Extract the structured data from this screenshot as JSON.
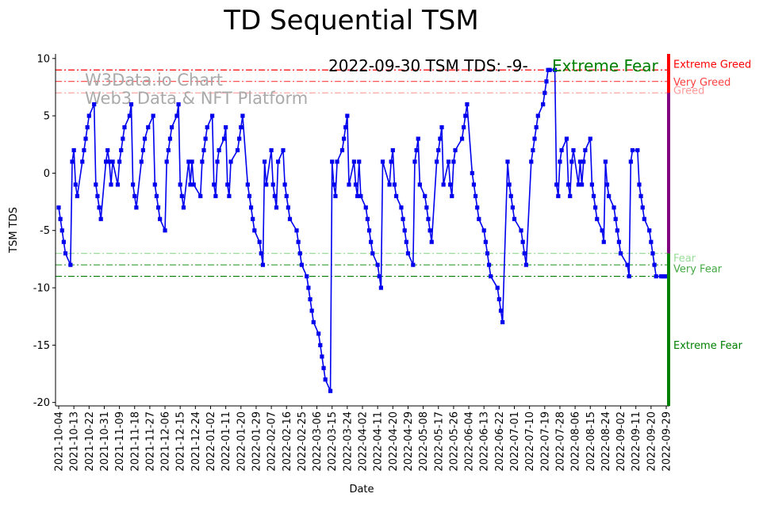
{
  "chart_data": {
    "type": "line",
    "title": "TD Sequential TSM",
    "xlabel": "Date",
    "ylabel": "TSM TDS",
    "ylim": [
      -20.3,
      10.4
    ],
    "yticks": [
      10,
      5,
      0,
      -5,
      -10,
      -15,
      -20
    ],
    "x_start": "2021-10-04",
    "x_end": "2022-09-29",
    "x_tick_labels": [
      "2021-10-04",
      "2021-10-13",
      "2021-10-22",
      "2021-10-31",
      "2021-11-09",
      "2021-11-18",
      "2021-11-27",
      "2021-12-06",
      "2021-12-15",
      "2021-12-24",
      "2022-01-02",
      "2022-01-11",
      "2022-01-20",
      "2022-01-29",
      "2022-02-07",
      "2022-02-16",
      "2022-02-25",
      "2022-03-06",
      "2022-03-15",
      "2022-03-24",
      "2022-04-02",
      "2022-04-11",
      "2022-04-20",
      "2022-04-29",
      "2022-05-08",
      "2022-05-17",
      "2022-05-26",
      "2022-06-04",
      "2022-06-13",
      "2022-06-22",
      "2022-07-01",
      "2022-07-10",
      "2022-07-19",
      "2022-07-28",
      "2022-08-06",
      "2022-08-15",
      "2022-08-24",
      "2022-09-02",
      "2022-09-11",
      "2022-09-20",
      "2022-09-29"
    ],
    "annotation_date": "2022-09-30 TSM TDS: -9-",
    "annotation_label": "Extreme Fear",
    "watermark_line1": "W3Data.io Chart",
    "watermark_line2": "Web3 Data & NFT Platform",
    "levels": [
      {
        "value": 9,
        "label": "Extreme Greed",
        "color": "#ff0000",
        "style": "dashdot"
      },
      {
        "value": 8,
        "label": "Very Greed",
        "color": "#ff4040",
        "style": "dashdot"
      },
      {
        "value": 7,
        "label": "Greed",
        "color": "#ff9999",
        "style": "dashdot"
      },
      {
        "value": -7,
        "label": "Fear",
        "color": "#99dd99",
        "style": "dashdot"
      },
      {
        "value": -8,
        "label": "Very Fear",
        "color": "#44aa44",
        "style": "dashdot"
      },
      {
        "value": -9,
        "label": "Extreme Fear",
        "color": "#008000",
        "style": "dashdot"
      }
    ],
    "series": [
      {
        "color": "#0000ee",
        "points": [
          [
            "2021-10-04",
            -3
          ],
          [
            "2021-10-05",
            -4
          ],
          [
            "2021-10-06",
            -5
          ],
          [
            "2021-10-07",
            -6
          ],
          [
            "2021-10-08",
            -7
          ],
          [
            "2021-10-11",
            -8
          ],
          [
            "2021-10-12",
            1
          ],
          [
            "2021-10-13",
            2
          ],
          [
            "2021-10-14",
            -1
          ],
          [
            "2021-10-15",
            -2
          ],
          [
            "2021-10-18",
            1
          ],
          [
            "2021-10-19",
            2
          ],
          [
            "2021-10-20",
            3
          ],
          [
            "2021-10-21",
            4
          ],
          [
            "2021-10-22",
            5
          ],
          [
            "2021-10-25",
            6
          ],
          [
            "2021-10-26",
            -1
          ],
          [
            "2021-10-27",
            -2
          ],
          [
            "2021-10-28",
            -3
          ],
          [
            "2021-10-29",
            -4
          ],
          [
            "2021-11-01",
            1
          ],
          [
            "2021-11-02",
            2
          ],
          [
            "2021-11-03",
            1
          ],
          [
            "2021-11-04",
            -1
          ],
          [
            "2021-11-05",
            1
          ],
          [
            "2021-11-08",
            -1
          ],
          [
            "2021-11-09",
            1
          ],
          [
            "2021-11-10",
            2
          ],
          [
            "2021-11-11",
            3
          ],
          [
            "2021-11-12",
            4
          ],
          [
            "2021-11-15",
            5
          ],
          [
            "2021-11-16",
            6
          ],
          [
            "2021-11-17",
            -1
          ],
          [
            "2021-11-18",
            -2
          ],
          [
            "2021-11-19",
            -3
          ],
          [
            "2021-11-22",
            1
          ],
          [
            "2021-11-23",
            2
          ],
          [
            "2021-11-24",
            3
          ],
          [
            "2021-11-26",
            4
          ],
          [
            "2021-11-29",
            5
          ],
          [
            "2021-11-30",
            -1
          ],
          [
            "2021-12-01",
            -2
          ],
          [
            "2021-12-02",
            -3
          ],
          [
            "2021-12-03",
            -4
          ],
          [
            "2021-12-06",
            -5
          ],
          [
            "2021-12-07",
            1
          ],
          [
            "2021-12-08",
            2
          ],
          [
            "2021-12-09",
            3
          ],
          [
            "2021-12-10",
            4
          ],
          [
            "2021-12-13",
            5
          ],
          [
            "2021-12-14",
            6
          ],
          [
            "2021-12-15",
            -1
          ],
          [
            "2021-12-16",
            -2
          ],
          [
            "2021-12-17",
            -3
          ],
          [
            "2021-12-20",
            1
          ],
          [
            "2021-12-21",
            -1
          ],
          [
            "2021-12-22",
            1
          ],
          [
            "2021-12-23",
            -1
          ],
          [
            "2021-12-27",
            -2
          ],
          [
            "2021-12-28",
            1
          ],
          [
            "2021-12-29",
            2
          ],
          [
            "2021-12-30",
            3
          ],
          [
            "2021-12-31",
            4
          ],
          [
            "2022-01-03",
            5
          ],
          [
            "2022-01-04",
            -1
          ],
          [
            "2022-01-05",
            -2
          ],
          [
            "2022-01-06",
            1
          ],
          [
            "2022-01-07",
            2
          ],
          [
            "2022-01-10",
            3
          ],
          [
            "2022-01-11",
            4
          ],
          [
            "2022-01-12",
            -1
          ],
          [
            "2022-01-13",
            -2
          ],
          [
            "2022-01-14",
            1
          ],
          [
            "2022-01-18",
            2
          ],
          [
            "2022-01-19",
            3
          ],
          [
            "2022-01-20",
            4
          ],
          [
            "2022-01-21",
            5
          ],
          [
            "2022-01-24",
            -1
          ],
          [
            "2022-01-25",
            -2
          ],
          [
            "2022-01-26",
            -3
          ],
          [
            "2022-01-27",
            -4
          ],
          [
            "2022-01-28",
            -5
          ],
          [
            "2022-01-31",
            -6
          ],
          [
            "2022-02-01",
            -7
          ],
          [
            "2022-02-02",
            -8
          ],
          [
            "2022-02-03",
            1
          ],
          [
            "2022-02-04",
            -1
          ],
          [
            "2022-02-07",
            2
          ],
          [
            "2022-02-08",
            -1
          ],
          [
            "2022-02-09",
            -2
          ],
          [
            "2022-02-10",
            -3
          ],
          [
            "2022-02-11",
            1
          ],
          [
            "2022-02-14",
            2
          ],
          [
            "2022-02-15",
            -1
          ],
          [
            "2022-02-16",
            -2
          ],
          [
            "2022-02-17",
            -3
          ],
          [
            "2022-02-18",
            -4
          ],
          [
            "2022-02-22",
            -5
          ],
          [
            "2022-02-23",
            -6
          ],
          [
            "2022-02-24",
            -7
          ],
          [
            "2022-02-25",
            -8
          ],
          [
            "2022-02-28",
            -9
          ],
          [
            "2022-03-01",
            -10
          ],
          [
            "2022-03-02",
            -11
          ],
          [
            "2022-03-03",
            -12
          ],
          [
            "2022-03-04",
            -13
          ],
          [
            "2022-03-07",
            -14
          ],
          [
            "2022-03-08",
            -15
          ],
          [
            "2022-03-09",
            -16
          ],
          [
            "2022-03-10",
            -17
          ],
          [
            "2022-03-11",
            -18
          ],
          [
            "2022-03-14",
            -19
          ],
          [
            "2022-03-15",
            1
          ],
          [
            "2022-03-16",
            -1
          ],
          [
            "2022-03-17",
            -2
          ],
          [
            "2022-03-18",
            1
          ],
          [
            "2022-03-21",
            2
          ],
          [
            "2022-03-22",
            3
          ],
          [
            "2022-03-23",
            4
          ],
          [
            "2022-03-24",
            5
          ],
          [
            "2022-03-25",
            -1
          ],
          [
            "2022-03-28",
            1
          ],
          [
            "2022-03-29",
            -1
          ],
          [
            "2022-03-30",
            -2
          ],
          [
            "2022-03-31",
            1
          ],
          [
            "2022-04-01",
            -2
          ],
          [
            "2022-04-04",
            -3
          ],
          [
            "2022-04-05",
            -4
          ],
          [
            "2022-04-06",
            -5
          ],
          [
            "2022-04-07",
            -6
          ],
          [
            "2022-04-08",
            -7
          ],
          [
            "2022-04-11",
            -8
          ],
          [
            "2022-04-12",
            -9
          ],
          [
            "2022-04-13",
            -10
          ],
          [
            "2022-04-14",
            1
          ],
          [
            "2022-04-18",
            -1
          ],
          [
            "2022-04-19",
            1
          ],
          [
            "2022-04-20",
            2
          ],
          [
            "2022-04-21",
            -1
          ],
          [
            "2022-04-22",
            -2
          ],
          [
            "2022-04-25",
            -3
          ],
          [
            "2022-04-26",
            -4
          ],
          [
            "2022-04-27",
            -5
          ],
          [
            "2022-04-28",
            -6
          ],
          [
            "2022-04-29",
            -7
          ],
          [
            "2022-05-02",
            -8
          ],
          [
            "2022-05-03",
            1
          ],
          [
            "2022-05-04",
            2
          ],
          [
            "2022-05-05",
            3
          ],
          [
            "2022-05-06",
            -1
          ],
          [
            "2022-05-09",
            -2
          ],
          [
            "2022-05-10",
            -3
          ],
          [
            "2022-05-11",
            -4
          ],
          [
            "2022-05-12",
            -5
          ],
          [
            "2022-05-13",
            -6
          ],
          [
            "2022-05-16",
            1
          ],
          [
            "2022-05-17",
            2
          ],
          [
            "2022-05-18",
            3
          ],
          [
            "2022-05-19",
            4
          ],
          [
            "2022-05-20",
            -1
          ],
          [
            "2022-05-23",
            1
          ],
          [
            "2022-05-24",
            -1
          ],
          [
            "2022-05-25",
            -2
          ],
          [
            "2022-05-26",
            1
          ],
          [
            "2022-05-27",
            2
          ],
          [
            "2022-05-31",
            3
          ],
          [
            "2022-06-01",
            4
          ],
          [
            "2022-06-02",
            5
          ],
          [
            "2022-06-03",
            6
          ],
          [
            "2022-06-06",
            0
          ],
          [
            "2022-06-07",
            -1
          ],
          [
            "2022-06-08",
            -2
          ],
          [
            "2022-06-09",
            -3
          ],
          [
            "2022-06-10",
            -4
          ],
          [
            "2022-06-13",
            -5
          ],
          [
            "2022-06-14",
            -6
          ],
          [
            "2022-06-15",
            -7
          ],
          [
            "2022-06-16",
            -8
          ],
          [
            "2022-06-17",
            -9
          ],
          [
            "2022-06-21",
            -10
          ],
          [
            "2022-06-22",
            -11
          ],
          [
            "2022-06-23",
            -12
          ],
          [
            "2022-06-24",
            -13
          ],
          [
            "2022-06-27",
            1
          ],
          [
            "2022-06-28",
            -1
          ],
          [
            "2022-06-29",
            -2
          ],
          [
            "2022-06-30",
            -3
          ],
          [
            "2022-07-01",
            -4
          ],
          [
            "2022-07-05",
            -5
          ],
          [
            "2022-07-06",
            -6
          ],
          [
            "2022-07-07",
            -7
          ],
          [
            "2022-07-08",
            -8
          ],
          [
            "2022-07-11",
            1
          ],
          [
            "2022-07-12",
            2
          ],
          [
            "2022-07-13",
            3
          ],
          [
            "2022-07-14",
            4
          ],
          [
            "2022-07-15",
            5
          ],
          [
            "2022-07-18",
            6
          ],
          [
            "2022-07-19",
            7
          ],
          [
            "2022-07-20",
            8
          ],
          [
            "2022-07-21",
            9
          ],
          [
            "2022-07-22",
            9
          ],
          [
            "2022-07-25",
            9
          ],
          [
            "2022-07-26",
            -1
          ],
          [
            "2022-07-27",
            -2
          ],
          [
            "2022-07-28",
            1
          ],
          [
            "2022-07-29",
            2
          ],
          [
            "2022-08-01",
            3
          ],
          [
            "2022-08-02",
            -1
          ],
          [
            "2022-08-03",
            -2
          ],
          [
            "2022-08-04",
            1
          ],
          [
            "2022-08-05",
            2
          ],
          [
            "2022-08-08",
            -1
          ],
          [
            "2022-08-09",
            1
          ],
          [
            "2022-08-10",
            -1
          ],
          [
            "2022-08-11",
            1
          ],
          [
            "2022-08-12",
            2
          ],
          [
            "2022-08-15",
            3
          ],
          [
            "2022-08-16",
            -1
          ],
          [
            "2022-08-17",
            -2
          ],
          [
            "2022-08-18",
            -3
          ],
          [
            "2022-08-19",
            -4
          ],
          [
            "2022-08-22",
            -5
          ],
          [
            "2022-08-23",
            -6
          ],
          [
            "2022-08-24",
            1
          ],
          [
            "2022-08-25",
            -1
          ],
          [
            "2022-08-26",
            -2
          ],
          [
            "2022-08-29",
            -3
          ],
          [
            "2022-08-30",
            -4
          ],
          [
            "2022-08-31",
            -5
          ],
          [
            "2022-09-01",
            -6
          ],
          [
            "2022-09-02",
            -7
          ],
          [
            "2022-09-06",
            -8
          ],
          [
            "2022-09-07",
            -9
          ],
          [
            "2022-09-08",
            1
          ],
          [
            "2022-09-09",
            2
          ],
          [
            "2022-09-12",
            2
          ],
          [
            "2022-09-13",
            -1
          ],
          [
            "2022-09-14",
            -2
          ],
          [
            "2022-09-15",
            -3
          ],
          [
            "2022-09-16",
            -4
          ],
          [
            "2022-09-19",
            -5
          ],
          [
            "2022-09-20",
            -6
          ],
          [
            "2022-09-21",
            -7
          ],
          [
            "2022-09-22",
            -8
          ],
          [
            "2022-09-23",
            -9
          ],
          [
            "2022-09-26",
            -9
          ],
          [
            "2022-09-27",
            -9
          ],
          [
            "2022-09-28",
            -9
          ],
          [
            "2022-09-29",
            -9
          ]
        ]
      }
    ]
  }
}
